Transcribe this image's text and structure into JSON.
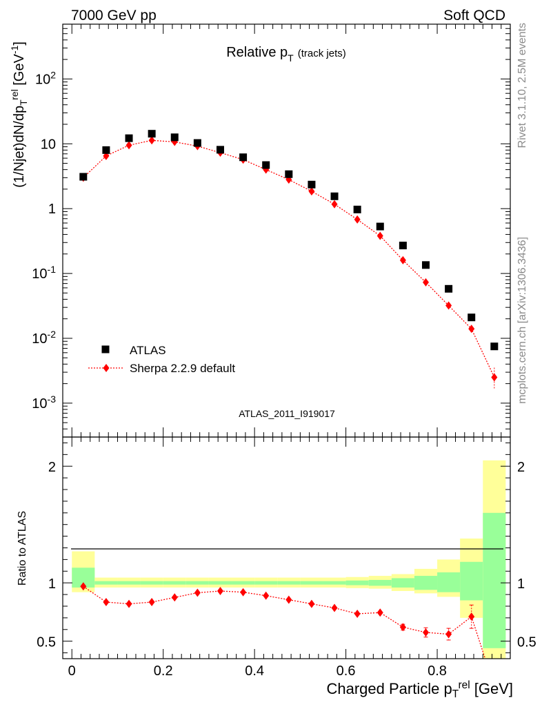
{
  "header": {
    "left": "7000 GeV pp",
    "right": "Soft QCD"
  },
  "title": {
    "main": "Relative p",
    "sub": "T",
    "suffix": "(track jets)"
  },
  "side_labels": {
    "rivet": "Rivet 3.1.10,  2.5M events",
    "mcplots": "mcplots.cern.ch [arXiv:1306.3436]"
  },
  "analysis_id": "ATLAS_2011_I919017",
  "chart_data": [
    {
      "type": "scatter",
      "title": "Relative pT (track jets)",
      "xlabel": "Charged Particle p_T^rel [GeV]",
      "ylabel": "(1/Njet)dN/dp_T^rel [GeV^-1]",
      "log_y": true,
      "xlim": [
        -0.02,
        0.96
      ],
      "ylim": [
        0.0003,
        700
      ],
      "legend": "bottom-left",
      "x_ticks": [
        "0",
        "0.2",
        "0.4",
        "0.6",
        "0.8"
      ],
      "y_ticks": [
        "10^-3",
        "10^-2",
        "10^-1",
        "1",
        "10",
        "10^2"
      ],
      "x": [
        0.025,
        0.075,
        0.125,
        0.175,
        0.225,
        0.275,
        0.325,
        0.375,
        0.425,
        0.475,
        0.525,
        0.575,
        0.625,
        0.675,
        0.725,
        0.775,
        0.825,
        0.875,
        0.925
      ],
      "series": [
        {
          "name": "ATLAS",
          "color": "#000000",
          "marker": "square",
          "values": [
            3.1,
            8.0,
            12.2,
            14.3,
            12.6,
            10.3,
            8.1,
            6.2,
            4.7,
            3.4,
            2.35,
            1.55,
            0.97,
            0.53,
            0.27,
            0.135,
            0.058,
            0.021,
            0.0075
          ]
        },
        {
          "name": "Sherpa 2.2.9 default",
          "color": "#ff0000",
          "marker": "diamond",
          "line": "dotted",
          "values": [
            3.0,
            6.5,
            9.5,
            11.3,
            10.7,
            9.2,
            7.3,
            5.7,
            4.0,
            2.8,
            1.85,
            1.17,
            0.68,
            0.38,
            0.16,
            0.073,
            0.032,
            0.014,
            0.0025
          ]
        }
      ]
    },
    {
      "type": "line",
      "ylabel": "Ratio to ATLAS",
      "xlabel": "Charged Particle p_T^rel [GeV]",
      "xlim": [
        -0.02,
        0.96
      ],
      "ylim": [
        0.35,
        2.25
      ],
      "y_ticks": [
        "0.5",
        "1",
        "2"
      ],
      "bin_edges": [
        0.0,
        0.05,
        0.1,
        0.15,
        0.2,
        0.25,
        0.3,
        0.35,
        0.4,
        0.45,
        0.5,
        0.55,
        0.6,
        0.65,
        0.7,
        0.75,
        0.8,
        0.85,
        0.9,
        0.95
      ],
      "band_stat": {
        "color": "#99ff99",
        "low": [
          0.96,
          0.985,
          0.985,
          0.985,
          0.985,
          0.985,
          0.985,
          0.985,
          0.985,
          0.985,
          0.985,
          0.985,
          0.98,
          0.975,
          0.96,
          0.94,
          0.92,
          0.85,
          0.44
        ],
        "high": [
          1.13,
          1.015,
          1.015,
          1.015,
          1.015,
          1.015,
          1.015,
          1.015,
          1.015,
          1.015,
          1.015,
          1.015,
          1.02,
          1.025,
          1.04,
          1.06,
          1.09,
          1.18,
          1.6
        ]
      },
      "band_total": {
        "color": "#ffff99",
        "low": [
          0.92,
          0.96,
          0.96,
          0.96,
          0.96,
          0.96,
          0.96,
          0.96,
          0.96,
          0.96,
          0.96,
          0.96,
          0.955,
          0.95,
          0.93,
          0.91,
          0.88,
          0.7,
          0.35
        ],
        "high": [
          1.27,
          1.045,
          1.045,
          1.045,
          1.045,
          1.045,
          1.045,
          1.045,
          1.045,
          1.045,
          1.045,
          1.045,
          1.05,
          1.06,
          1.075,
          1.12,
          1.2,
          1.38,
          2.05
        ]
      },
      "series": [
        {
          "name": "Sherpa 2.2.9 default",
          "color": "#ff0000",
          "x": [
            0.025,
            0.075,
            0.125,
            0.175,
            0.225,
            0.275,
            0.325,
            0.375,
            0.425,
            0.475,
            0.525,
            0.575,
            0.625,
            0.675,
            0.725,
            0.775,
            0.825,
            0.875
          ],
          "values": [
            0.97,
            0.835,
            0.82,
            0.835,
            0.875,
            0.915,
            0.93,
            0.92,
            0.89,
            0.855,
            0.82,
            0.785,
            0.735,
            0.745,
            0.62,
            0.575,
            0.56,
            0.71
          ],
          "errors": [
            0.01,
            0.01,
            0.01,
            0.01,
            0.01,
            0.01,
            0.01,
            0.01,
            0.01,
            0.01,
            0.01,
            0.01,
            0.012,
            0.015,
            0.025,
            0.04,
            0.05,
            0.1
          ],
          "tail": {
            "from": [
              0.875,
              0.71
            ],
            "to": [
              0.905,
              0.35
            ]
          }
        }
      ]
    }
  ]
}
